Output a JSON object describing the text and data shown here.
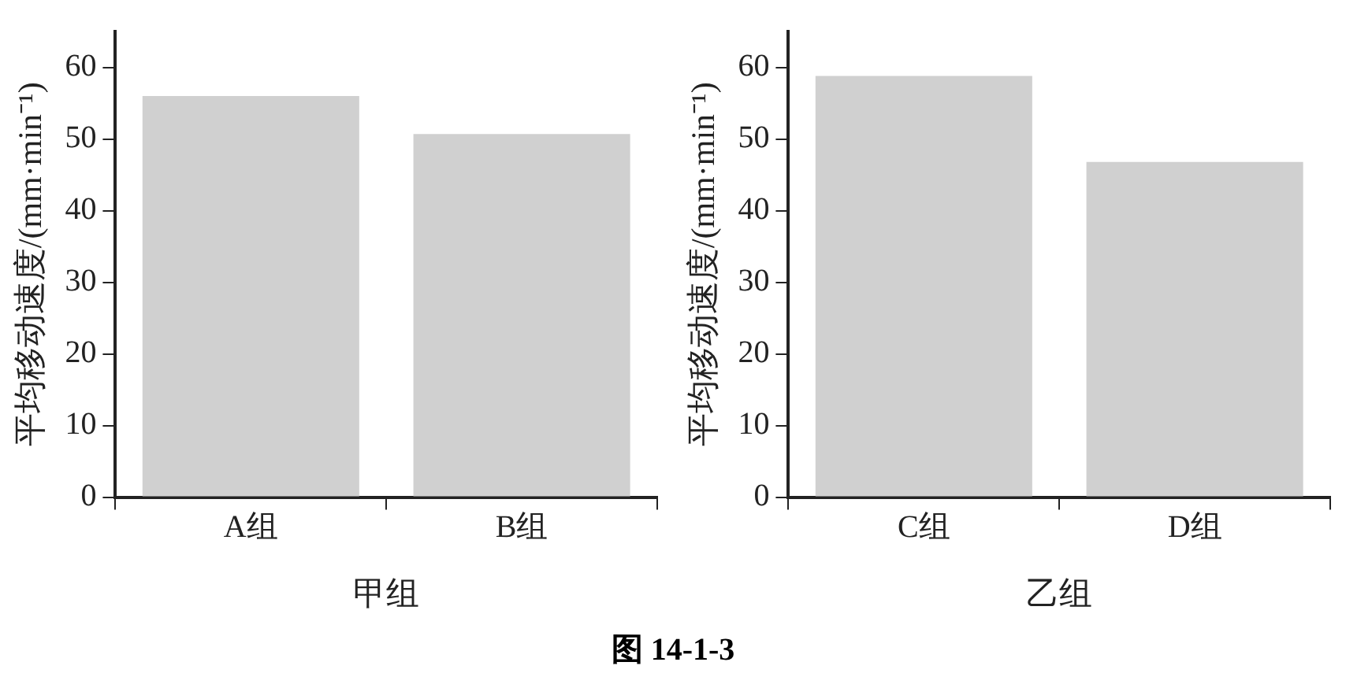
{
  "chart_data": [
    {
      "type": "bar",
      "categories": [
        "A组",
        "B组"
      ],
      "values": [
        56,
        50.7
      ],
      "color": "#d0d0d0",
      "xlabel": "甲组",
      "ylabel": "平均移动速度/(mm·min⁻¹)",
      "ylim": [
        0,
        65
      ],
      "yticks": [
        0,
        10,
        20,
        30,
        40,
        50,
        60
      ],
      "annotations": [
        "图 14-1-3"
      ]
    },
    {
      "type": "bar",
      "categories": [
        "C组",
        "D组"
      ],
      "values": [
        58.8,
        46.8
      ],
      "color": "#d0d0d0",
      "xlabel": "乙组",
      "ylabel": "平均移动速度/(mm·min⁻¹)",
      "ylim": [
        0,
        65
      ],
      "yticks": [
        0,
        10,
        20,
        30,
        40,
        50,
        60
      ]
    }
  ]
}
